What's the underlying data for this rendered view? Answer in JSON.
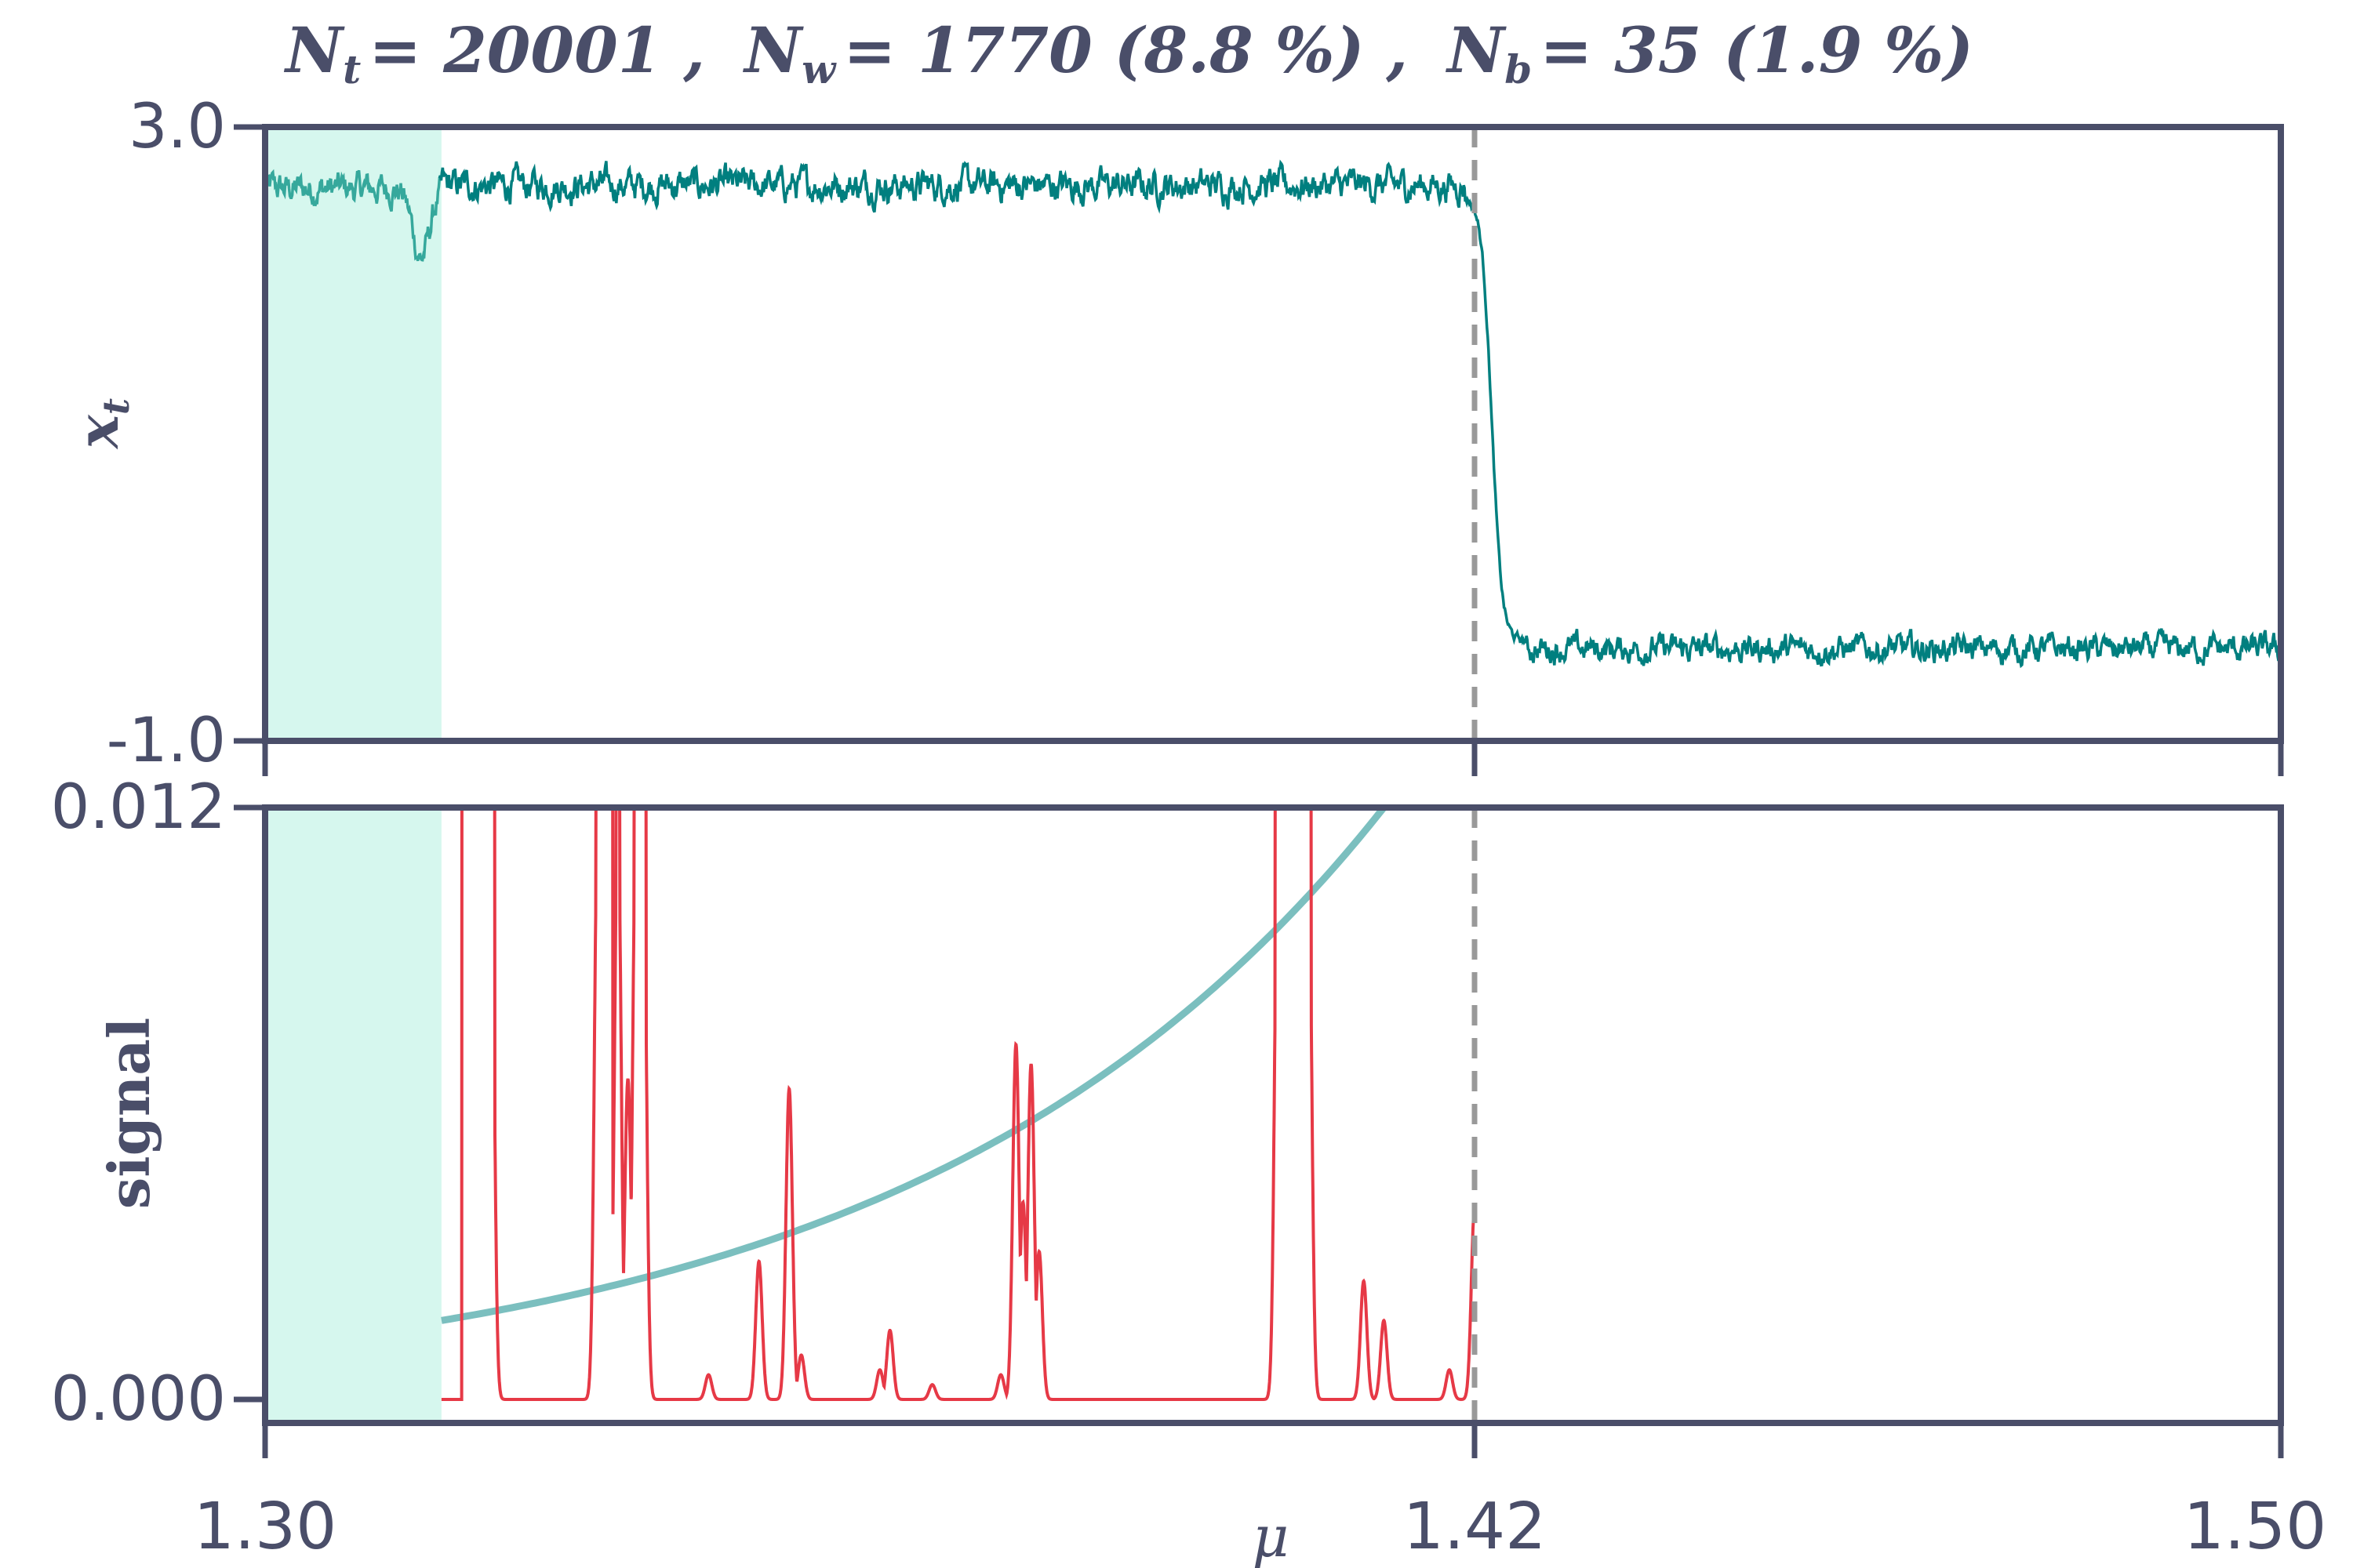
{
  "chart_data": {
    "type": "line",
    "title": "N_t = 20001 ,  N_w = 1770 (8.8 %) ,  N_b = 35 (1.9 %)",
    "title_parts": {
      "nt_sym": "N",
      "nt_sub": "t",
      "nt_val": "= 20001 ,",
      "nw_sym": "N",
      "nw_sub": "w",
      "nw_val": "= 1770 (8.8 %) ,",
      "nb_sym": "N",
      "nb_sub": "b",
      "nb_val": "= 35 (1.9 %)"
    },
    "xlabel": "μ",
    "xlim": [
      1.3,
      1.5
    ],
    "x_ticks": [
      "1.30",
      "1.42",
      "1.50"
    ],
    "x_tick_values": [
      1.3,
      1.42,
      1.5
    ],
    "critical_point": 1.42,
    "warmup_region": [
      1.3,
      1.3175
    ],
    "colors": {
      "axis": "#4a4e69",
      "series": "#007f7f",
      "signal": "#e63946",
      "threshold": "#7bbfbf",
      "warmup": "#d6f7ee",
      "vline": "#999999"
    },
    "top_panel": {
      "ylabel_sym": "x",
      "ylabel_sub": "t",
      "ylim": [
        -1.0,
        3.0
      ],
      "y_ticks": [
        "3.0",
        "-1.0"
      ],
      "y_tick_values": [
        3.0,
        -1.0
      ],
      "segments": [
        {
          "x0": 1.3,
          "x1": 1.3175,
          "level": 2.6,
          "noise": 0.07,
          "dip": {
            "at": 1.3155,
            "depth": 0.45,
            "width": 0.0012
          }
        },
        {
          "x0": 1.3175,
          "x1": 1.419,
          "level": 2.62,
          "noise": 0.07
        },
        {
          "x0": 1.419,
          "x1": 1.425,
          "transition_from": 2.55,
          "transition_to": -0.35
        },
        {
          "x0": 1.425,
          "x1": 1.5,
          "level": -0.4,
          "noise": 0.06
        }
      ]
    },
    "bottom_panel": {
      "ylabel": "signal",
      "ylim": [
        -0.0005,
        0.012
      ],
      "y_ticks": [
        "0.012",
        "0.000"
      ],
      "y_tick_values": [
        0.012,
        0.0
      ],
      "threshold_curve": {
        "x0": 1.3175,
        "x1": 1.411,
        "y0": 0.0016,
        "y1": 0.012
      },
      "signal_baseline": 0.0,
      "signal_range": [
        1.3175,
        1.42
      ],
      "signal_peaks": [
        {
          "x": 1.3215,
          "y": 0.012
        },
        {
          "x": 1.3216,
          "y": 0.0108
        },
        {
          "x": 1.3224,
          "y": 0.012
        },
        {
          "x": 1.333,
          "y": 0.012
        },
        {
          "x": 1.3333,
          "y": 0.0082
        },
        {
          "x": 1.335,
          "y": 0.012
        },
        {
          "x": 1.336,
          "y": 0.0065
        },
        {
          "x": 1.3368,
          "y": 0.012
        },
        {
          "x": 1.3375,
          "y": 0.012
        },
        {
          "x": 1.344,
          "y": 0.0005
        },
        {
          "x": 1.349,
          "y": 0.0028
        },
        {
          "x": 1.352,
          "y": 0.0063
        },
        {
          "x": 1.3532,
          "y": 0.0009
        },
        {
          "x": 1.361,
          "y": 0.0006
        },
        {
          "x": 1.362,
          "y": 0.0014
        },
        {
          "x": 1.3662,
          "y": 0.0003
        },
        {
          "x": 1.373,
          "y": 0.0005
        },
        {
          "x": 1.3745,
          "y": 0.0072
        },
        {
          "x": 1.3752,
          "y": 0.004
        },
        {
          "x": 1.376,
          "y": 0.0068
        },
        {
          "x": 1.3768,
          "y": 0.003
        },
        {
          "x": 1.4005,
          "y": 0.012
        },
        {
          "x": 1.4035,
          "y": 0.012
        },
        {
          "x": 1.409,
          "y": 0.0024
        },
        {
          "x": 1.411,
          "y": 0.0016
        },
        {
          "x": 1.4175,
          "y": 0.0006
        },
        {
          "x": 1.42,
          "y": 0.0039
        }
      ]
    }
  }
}
